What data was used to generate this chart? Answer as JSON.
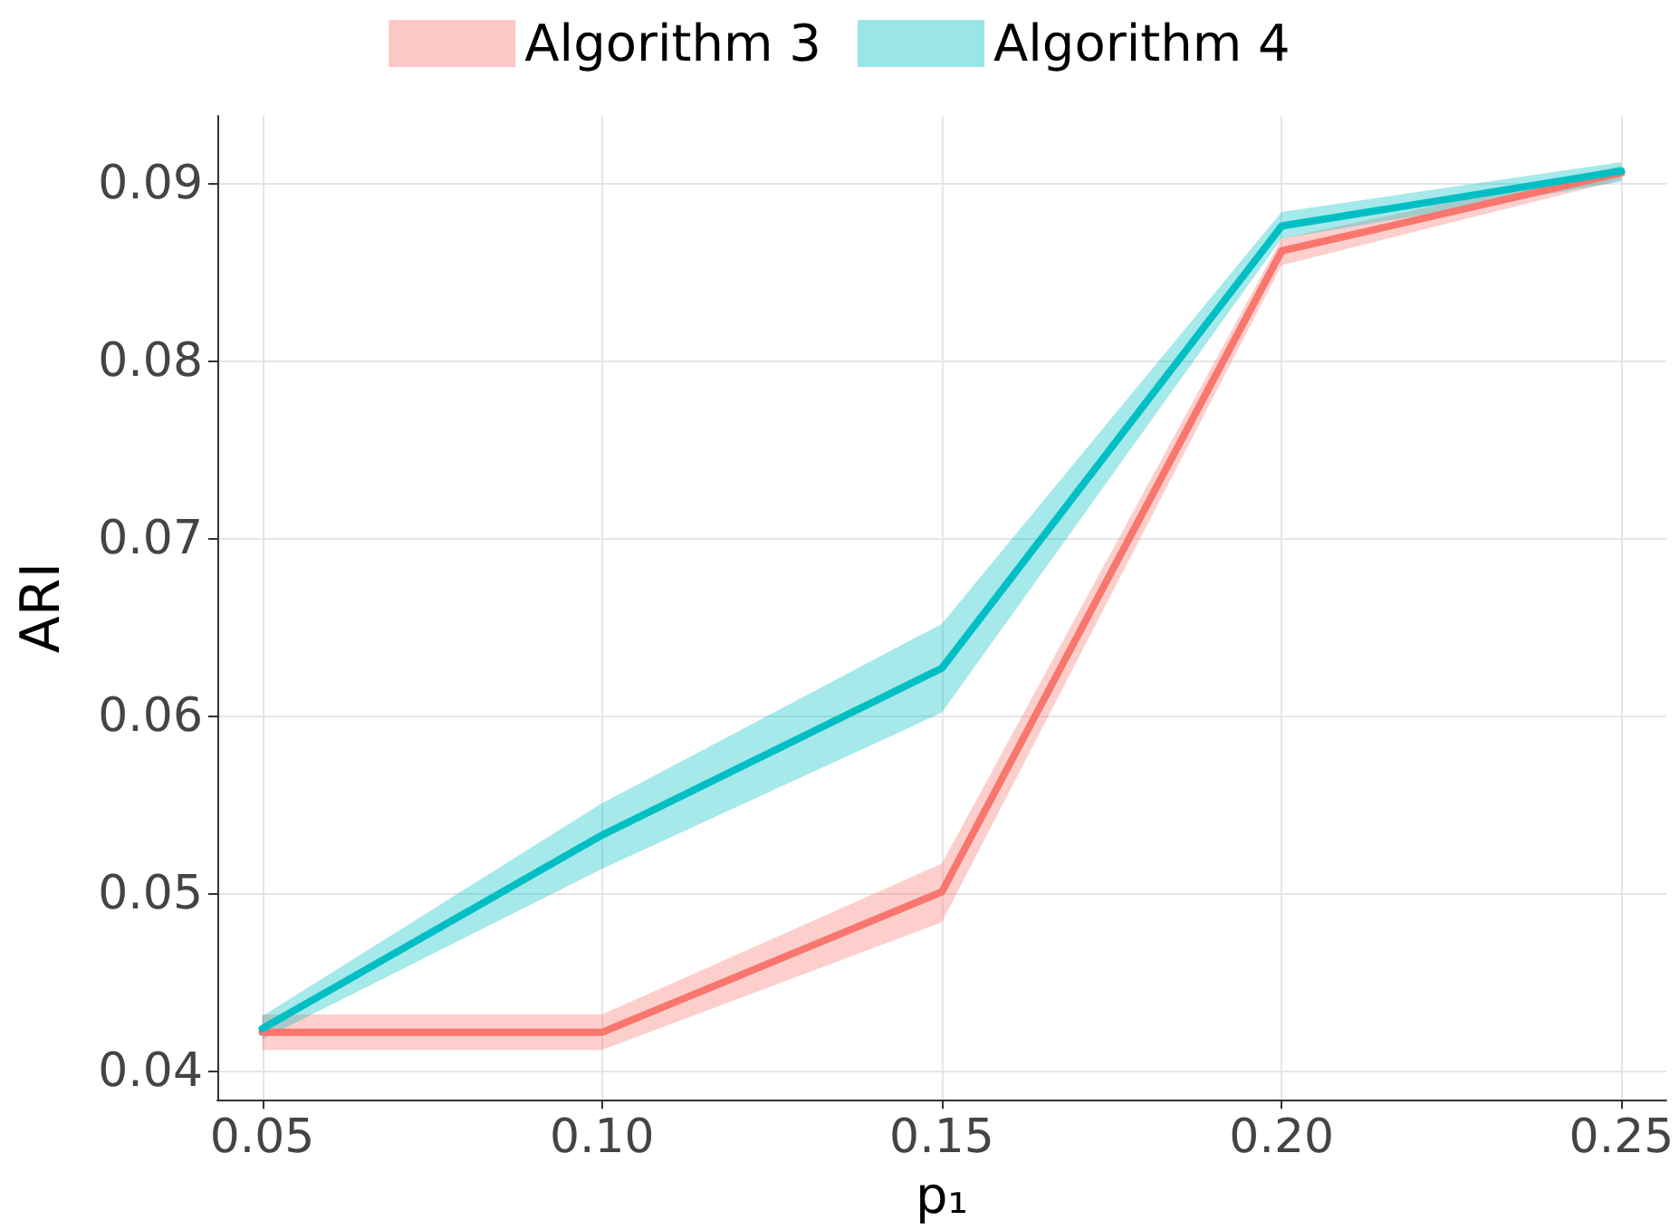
{
  "chart_data": {
    "type": "line",
    "xlabel": "p₁",
    "ylabel": "ARI",
    "x": [
      0.05,
      0.1,
      0.15,
      0.2,
      0.25
    ],
    "series": [
      {
        "name": "Algorithm 3",
        "color": "#f8766d",
        "values": [
          0.0422,
          0.0422,
          0.0501,
          0.0862,
          0.0906
        ],
        "lower": [
          0.0412,
          0.0412,
          0.0484,
          0.0854,
          0.0902
        ],
        "upper": [
          0.0432,
          0.0432,
          0.0517,
          0.0869,
          0.091
        ]
      },
      {
        "name": "Algorithm 4",
        "color": "#00bfc4",
        "values": [
          0.0424,
          0.0533,
          0.0627,
          0.0876,
          0.0907
        ],
        "lower": [
          0.0418,
          0.0514,
          0.0602,
          0.0869,
          0.0901
        ],
        "upper": [
          0.0431,
          0.0551,
          0.0652,
          0.0884,
          0.0912
        ]
      }
    ],
    "xlim": [
      0.0434,
      0.2566
    ],
    "xticks": [
      {
        "value": 0.05,
        "label": "0.05"
      },
      {
        "value": 0.1,
        "label": "0.10"
      },
      {
        "value": 0.15,
        "label": "0.15"
      },
      {
        "value": 0.2,
        "label": "0.20"
      },
      {
        "value": 0.25,
        "label": "0.25"
      }
    ],
    "ylim": [
      0.0384,
      0.0938
    ],
    "yticks": [
      {
        "value": 0.04,
        "label": "0.04"
      },
      {
        "value": 0.05,
        "label": "0.05"
      },
      {
        "value": 0.06,
        "label": "0.06"
      },
      {
        "value": 0.07,
        "label": "0.07"
      },
      {
        "value": 0.08,
        "label": "0.08"
      },
      {
        "value": 0.09,
        "label": "0.09"
      }
    ],
    "grid": true,
    "legend": "top",
    "marker": "none",
    "line_style": "solid"
  }
}
